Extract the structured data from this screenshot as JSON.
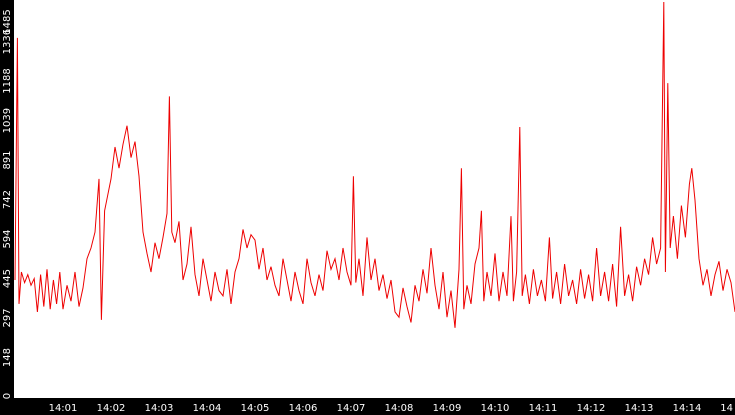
{
  "chart_data": {
    "type": "line",
    "title": "",
    "xlabel": "",
    "ylabel": "",
    "ylim": [
      0,
      1485
    ],
    "yticks": [
      0,
      148,
      297,
      445,
      594,
      742,
      891,
      1039,
      1188,
      1336,
      1485
    ],
    "xlim": [
      "14:00:00",
      "14:15:00"
    ],
    "xticks": [
      "14:01",
      "14:02",
      "14:03",
      "14:04",
      "14:05",
      "14:06",
      "14:07",
      "14:08",
      "14:09",
      "14:10",
      "14:11",
      "14:12",
      "14:13",
      "14:14",
      "14"
    ],
    "grid": false,
    "legend": "none",
    "line_color": "#ee0000",
    "axis_bg_color": "#000000",
    "tick_label_color": "#ffffff",
    "series": [
      {
        "points": [
          [
            "14:00:00",
            440
          ],
          [
            "14:00:03",
            1350
          ],
          [
            "14:00:05",
            350
          ],
          [
            "14:00:08",
            470
          ],
          [
            "14:00:12",
            430
          ],
          [
            "14:00:16",
            460
          ],
          [
            "14:00:20",
            420
          ],
          [
            "14:00:24",
            445
          ],
          [
            "14:00:28",
            320
          ],
          [
            "14:00:32",
            460
          ],
          [
            "14:00:36",
            340
          ],
          [
            "14:00:40",
            480
          ],
          [
            "14:00:44",
            330
          ],
          [
            "14:00:48",
            440
          ],
          [
            "14:00:52",
            350
          ],
          [
            "14:00:56",
            470
          ],
          [
            "14:01:00",
            330
          ],
          [
            "14:01:05",
            420
          ],
          [
            "14:01:10",
            360
          ],
          [
            "14:01:15",
            470
          ],
          [
            "14:01:20",
            340
          ],
          [
            "14:01:25",
            410
          ],
          [
            "14:01:30",
            520
          ],
          [
            "14:01:35",
            560
          ],
          [
            "14:01:40",
            620
          ],
          [
            "14:01:45",
            820
          ],
          [
            "14:01:48",
            290
          ],
          [
            "14:01:52",
            700
          ],
          [
            "14:01:56",
            760
          ],
          [
            "14:02:00",
            820
          ],
          [
            "14:02:05",
            940
          ],
          [
            "14:02:10",
            860
          ],
          [
            "14:02:15",
            950
          ],
          [
            "14:02:20",
            1020
          ],
          [
            "14:02:25",
            900
          ],
          [
            "14:02:30",
            960
          ],
          [
            "14:02:35",
            830
          ],
          [
            "14:02:40",
            620
          ],
          [
            "14:02:45",
            540
          ],
          [
            "14:02:50",
            470
          ],
          [
            "14:02:55",
            580
          ],
          [
            "14:03:00",
            520
          ],
          [
            "14:03:05",
            600
          ],
          [
            "14:03:10",
            690
          ],
          [
            "14:03:13",
            1130
          ],
          [
            "14:03:16",
            620
          ],
          [
            "14:03:20",
            580
          ],
          [
            "14:03:25",
            660
          ],
          [
            "14:03:30",
            440
          ],
          [
            "14:03:35",
            500
          ],
          [
            "14:03:40",
            640
          ],
          [
            "14:03:45",
            460
          ],
          [
            "14:03:50",
            380
          ],
          [
            "14:03:55",
            520
          ],
          [
            "14:04:00",
            440
          ],
          [
            "14:04:05",
            360
          ],
          [
            "14:04:10",
            470
          ],
          [
            "14:04:15",
            400
          ],
          [
            "14:04:20",
            380
          ],
          [
            "14:04:25",
            480
          ],
          [
            "14:04:30",
            350
          ],
          [
            "14:04:35",
            470
          ],
          [
            "14:04:40",
            520
          ],
          [
            "14:04:45",
            630
          ],
          [
            "14:04:50",
            560
          ],
          [
            "14:04:55",
            610
          ],
          [
            "14:05:00",
            590
          ],
          [
            "14:05:05",
            480
          ],
          [
            "14:05:10",
            560
          ],
          [
            "14:05:15",
            440
          ],
          [
            "14:05:20",
            490
          ],
          [
            "14:05:25",
            420
          ],
          [
            "14:05:30",
            380
          ],
          [
            "14:05:35",
            520
          ],
          [
            "14:05:40",
            440
          ],
          [
            "14:05:45",
            360
          ],
          [
            "14:05:50",
            470
          ],
          [
            "14:05:55",
            400
          ],
          [
            "14:06:00",
            350
          ],
          [
            "14:06:05",
            520
          ],
          [
            "14:06:10",
            430
          ],
          [
            "14:06:15",
            380
          ],
          [
            "14:06:20",
            460
          ],
          [
            "14:06:25",
            400
          ],
          [
            "14:06:30",
            550
          ],
          [
            "14:06:35",
            480
          ],
          [
            "14:06:40",
            520
          ],
          [
            "14:06:45",
            440
          ],
          [
            "14:06:50",
            560
          ],
          [
            "14:06:55",
            470
          ],
          [
            "14:07:00",
            420
          ],
          [
            "14:07:03",
            830
          ],
          [
            "14:07:06",
            430
          ],
          [
            "14:07:10",
            520
          ],
          [
            "14:07:15",
            380
          ],
          [
            "14:07:20",
            600
          ],
          [
            "14:07:25",
            440
          ],
          [
            "14:07:30",
            520
          ],
          [
            "14:07:35",
            400
          ],
          [
            "14:07:40",
            460
          ],
          [
            "14:07:45",
            370
          ],
          [
            "14:07:50",
            440
          ],
          [
            "14:07:55",
            320
          ],
          [
            "14:08:00",
            300
          ],
          [
            "14:08:05",
            410
          ],
          [
            "14:08:10",
            340
          ],
          [
            "14:08:15",
            280
          ],
          [
            "14:08:20",
            420
          ],
          [
            "14:08:25",
            360
          ],
          [
            "14:08:30",
            480
          ],
          [
            "14:08:35",
            390
          ],
          [
            "14:08:40",
            560
          ],
          [
            "14:08:45",
            420
          ],
          [
            "14:08:50",
            330
          ],
          [
            "14:08:55",
            470
          ],
          [
            "14:09:00",
            300
          ],
          [
            "14:09:05",
            400
          ],
          [
            "14:09:10",
            260
          ],
          [
            "14:09:15",
            480
          ],
          [
            "14:09:18",
            860
          ],
          [
            "14:09:21",
            330
          ],
          [
            "14:09:25",
            420
          ],
          [
            "14:09:30",
            350
          ],
          [
            "14:09:35",
            500
          ],
          [
            "14:09:40",
            560
          ],
          [
            "14:09:43",
            700
          ],
          [
            "14:09:46",
            360
          ],
          [
            "14:09:50",
            470
          ],
          [
            "14:09:55",
            380
          ],
          [
            "14:10:00",
            540
          ],
          [
            "14:10:05",
            360
          ],
          [
            "14:10:10",
            470
          ],
          [
            "14:10:15",
            380
          ],
          [
            "14:10:20",
            680
          ],
          [
            "14:10:23",
            360
          ],
          [
            "14:10:27",
            470
          ],
          [
            "14:10:31",
            1015
          ],
          [
            "14:10:34",
            380
          ],
          [
            "14:10:38",
            460
          ],
          [
            "14:10:43",
            350
          ],
          [
            "14:10:48",
            480
          ],
          [
            "14:10:53",
            380
          ],
          [
            "14:10:58",
            440
          ],
          [
            "14:11:03",
            360
          ],
          [
            "14:11:08",
            600
          ],
          [
            "14:11:12",
            370
          ],
          [
            "14:11:17",
            470
          ],
          [
            "14:11:22",
            350
          ],
          [
            "14:11:27",
            500
          ],
          [
            "14:11:32",
            380
          ],
          [
            "14:11:37",
            440
          ],
          [
            "14:11:42",
            350
          ],
          [
            "14:11:47",
            480
          ],
          [
            "14:11:52",
            370
          ],
          [
            "14:11:57",
            460
          ],
          [
            "14:12:02",
            360
          ],
          [
            "14:12:07",
            560
          ],
          [
            "14:12:12",
            380
          ],
          [
            "14:12:17",
            470
          ],
          [
            "14:12:22",
            360
          ],
          [
            "14:12:27",
            500
          ],
          [
            "14:12:32",
            340
          ],
          [
            "14:12:37",
            640
          ],
          [
            "14:12:42",
            380
          ],
          [
            "14:12:47",
            460
          ],
          [
            "14:12:52",
            360
          ],
          [
            "14:12:57",
            490
          ],
          [
            "14:13:02",
            420
          ],
          [
            "14:13:07",
            520
          ],
          [
            "14:13:12",
            460
          ],
          [
            "14:13:17",
            600
          ],
          [
            "14:13:22",
            500
          ],
          [
            "14:13:27",
            560
          ],
          [
            "14:13:31",
            1485
          ],
          [
            "14:13:33",
            470
          ],
          [
            "14:13:36",
            1180
          ],
          [
            "14:13:39",
            560
          ],
          [
            "14:13:43",
            680
          ],
          [
            "14:13:48",
            520
          ],
          [
            "14:13:53",
            720
          ],
          [
            "14:13:58",
            600
          ],
          [
            "14:14:03",
            800
          ],
          [
            "14:14:06",
            860
          ],
          [
            "14:14:10",
            740
          ],
          [
            "14:14:15",
            520
          ],
          [
            "14:14:20",
            420
          ],
          [
            "14:14:25",
            480
          ],
          [
            "14:14:30",
            380
          ],
          [
            "14:14:35",
            460
          ],
          [
            "14:14:40",
            510
          ],
          [
            "14:14:45",
            400
          ],
          [
            "14:14:50",
            480
          ],
          [
            "14:14:55",
            430
          ],
          [
            "14:15:00",
            320
          ]
        ]
      }
    ]
  }
}
